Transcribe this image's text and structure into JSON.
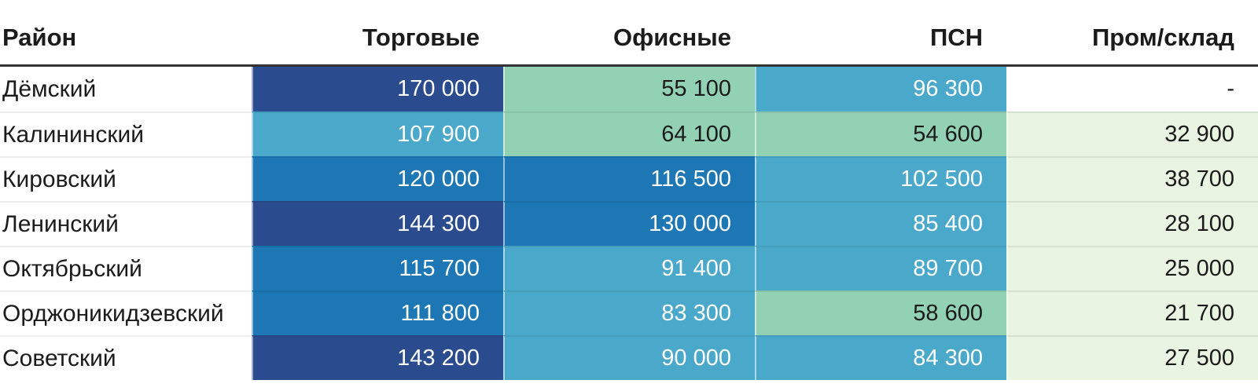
{
  "colors": {
    "navy": "#2a4b8d",
    "blue": "#1d77b5",
    "teal": "#4aa9ca",
    "green": "#93d1b5",
    "pale_green": "#eaf4e2",
    "white": "#ffffff",
    "text_dark": "#1b1b1b",
    "text_light": "#ffffff",
    "header_rule": "#333333",
    "row_separator": "rgba(0,0,0,0.07)"
  },
  "table": {
    "columns": [
      {
        "label": "Район",
        "align": "left"
      },
      {
        "label": "Торговые",
        "align": "right"
      },
      {
        "label": "Офисные",
        "align": "right"
      },
      {
        "label": "ПСН",
        "align": "right"
      },
      {
        "label": "Пром/склад",
        "align": "right"
      }
    ],
    "rows": [
      {
        "district": "Дёмский",
        "cells": [
          {
            "text": "170 000",
            "bg": "navy"
          },
          {
            "text": "55 100",
            "bg": "green"
          },
          {
            "text": "96 300",
            "bg": "teal"
          },
          {
            "text": "-",
            "bg": "white"
          }
        ]
      },
      {
        "district": "Калининский",
        "cells": [
          {
            "text": "107 900",
            "bg": "teal"
          },
          {
            "text": "64 100",
            "bg": "green"
          },
          {
            "text": "54 600",
            "bg": "green"
          },
          {
            "text": "32 900",
            "bg": "pale_green"
          }
        ]
      },
      {
        "district": "Кировский",
        "cells": [
          {
            "text": "120 000",
            "bg": "blue"
          },
          {
            "text": "116 500",
            "bg": "blue"
          },
          {
            "text": "102 500",
            "bg": "teal"
          },
          {
            "text": "38 700",
            "bg": "pale_green"
          }
        ]
      },
      {
        "district": "Ленинский",
        "cells": [
          {
            "text": "144 300",
            "bg": "navy"
          },
          {
            "text": "130 000",
            "bg": "blue"
          },
          {
            "text": "85 400",
            "bg": "teal"
          },
          {
            "text": "28 100",
            "bg": "pale_green"
          }
        ]
      },
      {
        "district": "Октябрьский",
        "cells": [
          {
            "text": "115 700",
            "bg": "blue"
          },
          {
            "text": "91 400",
            "bg": "teal"
          },
          {
            "text": "89 700",
            "bg": "teal"
          },
          {
            "text": "25 000",
            "bg": "pale_green"
          }
        ]
      },
      {
        "district": "Орджоникидзевский",
        "cells": [
          {
            "text": "111 800",
            "bg": "blue"
          },
          {
            "text": "83 300",
            "bg": "teal"
          },
          {
            "text": "58 600",
            "bg": "green"
          },
          {
            "text": "21 700",
            "bg": "pale_green"
          }
        ]
      },
      {
        "district": "Советский",
        "cells": [
          {
            "text": "143 200",
            "bg": "navy"
          },
          {
            "text": "90 000",
            "bg": "teal"
          },
          {
            "text": "84 300",
            "bg": "teal"
          },
          {
            "text": "27 500",
            "bg": "pale_green"
          }
        ]
      }
    ]
  },
  "chart_data": {
    "type": "heatmap",
    "rows": [
      "Дёмский",
      "Калининский",
      "Кировский",
      "Ленинский",
      "Октябрьский",
      "Орджоникидзевский",
      "Советский"
    ],
    "columns": [
      "Торговые",
      "Офисные",
      "ПСН",
      "Пром/склад"
    ],
    "row_axis_label": "Район",
    "values": [
      [
        170000,
        55100,
        96300,
        null
      ],
      [
        107900,
        64100,
        54600,
        32900
      ],
      [
        120000,
        116500,
        102500,
        38700
      ],
      [
        144300,
        130000,
        85400,
        28100
      ],
      [
        115700,
        91400,
        89700,
        25000
      ],
      [
        111800,
        83300,
        58600,
        21700
      ],
      [
        143200,
        90000,
        84300,
        27500
      ]
    ],
    "missing_value_marker": "-",
    "value_format": "space thousands separator",
    "legend": "none",
    "color_scale_low_to_high": [
      "#eaf4e2",
      "#93d1b5",
      "#4aa9ca",
      "#1d77b5",
      "#2a4b8d"
    ]
  }
}
